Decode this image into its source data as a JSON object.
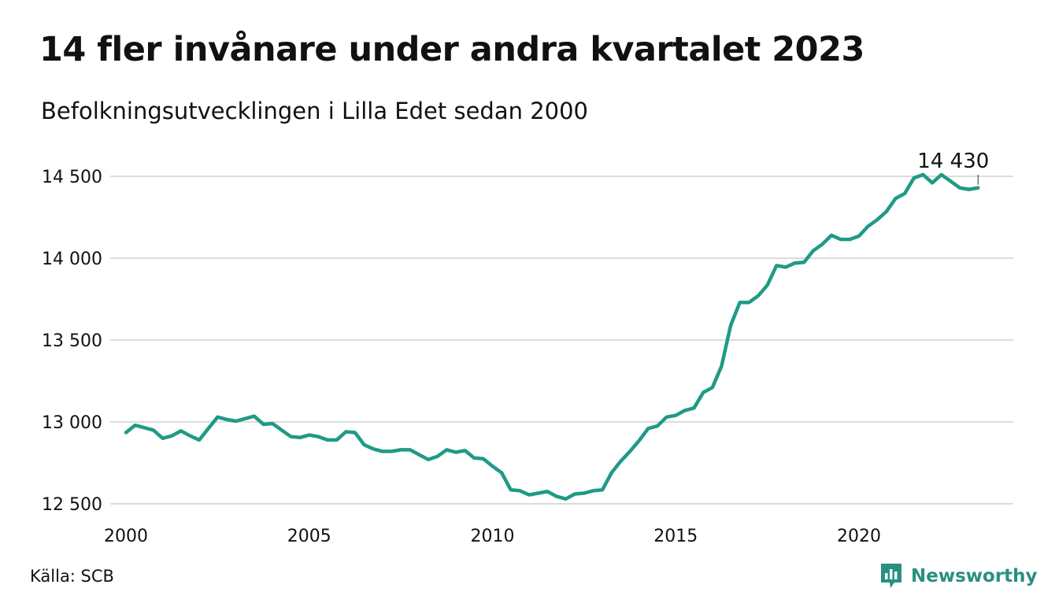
{
  "title": "14 fler invånare under andra kvartalet 2023",
  "subtitle": "Befolkningsutvecklingen i Lilla Edet sedan 2000",
  "source": "Källa: SCB",
  "brand": {
    "name": "Newsworthy",
    "icon": "newsworthy-logo-icon",
    "color": "#2a8f7f"
  },
  "line_color": "#1f9a86",
  "chart_data": {
    "type": "line",
    "title": "14 fler invånare under andra kvartalet 2023",
    "subtitle": "Befolkningsutvecklingen i Lilla Edet sedan 2000",
    "xlabel": "",
    "ylabel": "",
    "xlim": [
      2000,
      2024
    ],
    "ylim": [
      12450,
      14600
    ],
    "grid": true,
    "x_ticks": [
      2000,
      2005,
      2010,
      2015,
      2020
    ],
    "x_tick_labels": [
      "2000",
      "2005",
      "2010",
      "2015",
      "2020"
    ],
    "y_ticks": [
      12500,
      13000,
      13500,
      14000,
      14500
    ],
    "y_tick_labels": [
      "12 500",
      "13 000",
      "13 500",
      "14 000",
      "14 500"
    ],
    "last_label": "14 430",
    "series": [
      {
        "x": [
          2000.0,
          2000.25,
          2000.5,
          2000.75,
          2001.0,
          2001.25,
          2001.5,
          2001.75,
          2002.0,
          2002.25,
          2002.5,
          2002.75,
          2003.0,
          2003.25,
          2003.5,
          2003.75,
          2004.0,
          2004.25,
          2004.5,
          2004.75,
          2005.0,
          2005.25,
          2005.5,
          2005.75,
          2006.0,
          2006.25,
          2006.5,
          2006.75,
          2007.0,
          2007.25,
          2007.5,
          2007.75,
          2008.0,
          2008.25,
          2008.5,
          2008.75,
          2009.0,
          2009.25,
          2009.5,
          2009.75,
          2010.0,
          2010.25,
          2010.5,
          2010.75,
          2011.0,
          2011.25,
          2011.5,
          2011.75,
          2012.0,
          2012.25,
          2012.5,
          2012.75,
          2013.0,
          2013.25,
          2013.5,
          2013.75,
          2014.0,
          2014.25,
          2014.5,
          2014.75,
          2015.0,
          2015.25,
          2015.5,
          2015.75,
          2016.0,
          2016.25,
          2016.5,
          2016.75,
          2017.0,
          2017.25,
          2017.5,
          2017.75,
          2018.0,
          2018.25,
          2018.5,
          2018.75,
          2019.0,
          2019.25,
          2019.5,
          2019.75,
          2020.0,
          2020.25,
          2020.5,
          2020.75,
          2021.0,
          2021.25,
          2021.5,
          2021.75,
          2022.0,
          2022.25,
          2022.5,
          2022.75,
          2023.0,
          2023.25
        ],
        "values": [
          12935,
          12980,
          12965,
          12950,
          12900,
          12915,
          12945,
          12915,
          12890,
          12960,
          13030,
          13015,
          13005,
          13020,
          13035,
          12985,
          12990,
          12950,
          12910,
          12905,
          12920,
          12910,
          12890,
          12890,
          12940,
          12935,
          12860,
          12835,
          12820,
          12820,
          12830,
          12830,
          12800,
          12770,
          12790,
          12830,
          12815,
          12825,
          12780,
          12775,
          12730,
          12690,
          12585,
          12580,
          12555,
          12565,
          12575,
          12545,
          12530,
          12560,
          12565,
          12580,
          12585,
          12690,
          12760,
          12820,
          12885,
          12960,
          12975,
          13030,
          13040,
          13070,
          13085,
          13180,
          13210,
          13340,
          13590,
          13730,
          13730,
          13770,
          13835,
          13955,
          13945,
          13970,
          13975,
          14045,
          14085,
          14140,
          14115,
          14115,
          14135,
          14195,
          14235,
          14285,
          14365,
          14395,
          14490,
          14510,
          14460,
          14510,
          14470,
          14430,
          14420,
          14430
        ]
      }
    ]
  }
}
